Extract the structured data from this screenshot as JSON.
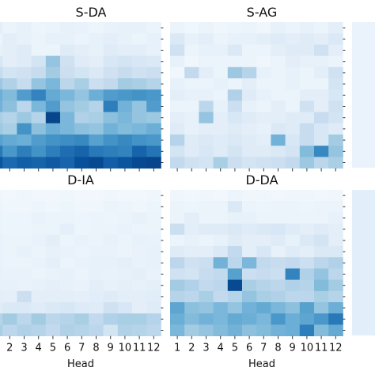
{
  "chart_data": [
    {
      "type": "heatmap",
      "title": "S-DA",
      "xlabel": "",
      "x_ticks": [
        "1",
        "2",
        "3",
        "4",
        "5",
        "6",
        "7",
        "8",
        "9",
        "10",
        "11",
        "12"
      ],
      "values": [
        [
          0.1,
          0.06,
          0.08,
          0.05,
          0.06,
          0.08,
          0.07,
          0.05,
          0.07,
          0.08,
          0.08,
          0.06
        ],
        [
          0.06,
          0.1,
          0.08,
          0.06,
          0.08,
          0.08,
          0.06,
          0.08,
          0.1,
          0.08,
          0.06,
          0.08
        ],
        [
          0.08,
          0.1,
          0.12,
          0.06,
          0.06,
          0.12,
          0.1,
          0.08,
          0.12,
          0.1,
          0.1,
          0.08
        ],
        [
          0.16,
          0.1,
          0.12,
          0.18,
          0.4,
          0.2,
          0.12,
          0.1,
          0.16,
          0.18,
          0.16,
          0.14
        ],
        [
          0.24,
          0.18,
          0.2,
          0.24,
          0.36,
          0.22,
          0.18,
          0.14,
          0.2,
          0.24,
          0.2,
          0.22
        ],
        [
          0.38,
          0.32,
          0.24,
          0.4,
          0.46,
          0.28,
          0.34,
          0.22,
          0.26,
          0.36,
          0.34,
          0.3
        ],
        [
          0.5,
          0.44,
          0.58,
          0.68,
          0.52,
          0.46,
          0.4,
          0.5,
          0.58,
          0.6,
          0.62,
          0.6
        ],
        [
          0.48,
          0.42,
          0.28,
          0.46,
          0.58,
          0.4,
          0.36,
          0.3,
          0.7,
          0.48,
          0.4,
          0.58
        ],
        [
          0.34,
          0.3,
          0.38,
          0.3,
          0.92,
          0.46,
          0.32,
          0.34,
          0.42,
          0.46,
          0.4,
          0.38
        ],
        [
          0.38,
          0.34,
          0.62,
          0.42,
          0.5,
          0.46,
          0.42,
          0.4,
          0.48,
          0.44,
          0.46,
          0.5
        ],
        [
          0.56,
          0.52,
          0.5,
          0.58,
          0.62,
          0.64,
          0.66,
          0.56,
          0.62,
          0.66,
          0.62,
          0.6
        ],
        [
          0.72,
          0.6,
          0.7,
          0.62,
          0.7,
          0.76,
          0.8,
          0.72,
          0.7,
          0.68,
          0.8,
          0.74
        ],
        [
          0.86,
          0.78,
          0.82,
          0.8,
          0.84,
          0.8,
          0.88,
          0.9,
          0.82,
          0.86,
          0.9,
          0.92
        ]
      ]
    },
    {
      "type": "heatmap",
      "title": "S-AG",
      "xlabel": "",
      "x_ticks": [
        "1",
        "2",
        "3",
        "4",
        "5",
        "6",
        "7",
        "8",
        "9",
        "10",
        "11",
        "12"
      ],
      "values": [
        [
          0.06,
          0.04,
          0.06,
          0.04,
          0.05,
          0.06,
          0.04,
          0.08,
          0.06,
          0.08,
          0.06,
          0.1
        ],
        [
          0.14,
          0.08,
          0.1,
          0.06,
          0.08,
          0.08,
          0.1,
          0.12,
          0.1,
          0.12,
          0.1,
          0.14
        ],
        [
          0.2,
          0.06,
          0.08,
          0.08,
          0.14,
          0.06,
          0.06,
          0.1,
          0.12,
          0.12,
          0.2,
          0.1
        ],
        [
          0.08,
          0.04,
          0.06,
          0.06,
          0.06,
          0.06,
          0.04,
          0.06,
          0.1,
          0.08,
          0.08,
          0.06
        ],
        [
          0.04,
          0.26,
          0.1,
          0.06,
          0.38,
          0.3,
          0.08,
          0.06,
          0.08,
          0.06,
          0.1,
          0.2
        ],
        [
          0.08,
          0.06,
          0.06,
          0.08,
          0.06,
          0.1,
          0.06,
          0.06,
          0.08,
          0.06,
          0.06,
          0.18
        ],
        [
          0.1,
          0.08,
          0.08,
          0.06,
          0.32,
          0.12,
          0.08,
          0.06,
          0.06,
          0.1,
          0.1,
          0.16
        ],
        [
          0.06,
          0.06,
          0.28,
          0.08,
          0.22,
          0.08,
          0.06,
          0.1,
          0.06,
          0.2,
          0.1,
          0.2
        ],
        [
          0.1,
          0.08,
          0.4,
          0.1,
          0.16,
          0.12,
          0.1,
          0.1,
          0.12,
          0.12,
          0.24,
          0.18
        ],
        [
          0.12,
          0.08,
          0.1,
          0.1,
          0.12,
          0.1,
          0.08,
          0.14,
          0.12,
          0.24,
          0.16,
          0.12
        ],
        [
          0.3,
          0.12,
          0.14,
          0.12,
          0.14,
          0.12,
          0.1,
          0.48,
          0.16,
          0.24,
          0.16,
          0.36
        ],
        [
          0.18,
          0.12,
          0.16,
          0.12,
          0.18,
          0.12,
          0.12,
          0.14,
          0.18,
          0.44,
          0.66,
          0.4
        ],
        [
          0.26,
          0.2,
          0.18,
          0.34,
          0.22,
          0.18,
          0.2,
          0.22,
          0.26,
          0.38,
          0.28,
          0.34
        ]
      ]
    },
    {
      "type": "heatmap",
      "title": "D-IA",
      "xlabel": "Head",
      "x_ticks": [
        "1",
        "2",
        "3",
        "4",
        "5",
        "6",
        "7",
        "8",
        "9",
        "10",
        "11",
        "12"
      ],
      "values": [
        [
          0.04,
          0.03,
          0.04,
          0.03,
          0.03,
          0.04,
          0.03,
          0.03,
          0.04,
          0.03,
          0.03,
          0.04
        ],
        [
          0.05,
          0.04,
          0.04,
          0.05,
          0.04,
          0.05,
          0.04,
          0.04,
          0.06,
          0.05,
          0.04,
          0.05
        ],
        [
          0.06,
          0.05,
          0.05,
          0.07,
          0.06,
          0.06,
          0.05,
          0.06,
          0.05,
          0.06,
          0.08,
          0.06
        ],
        [
          0.06,
          0.05,
          0.05,
          0.06,
          0.06,
          0.09,
          0.05,
          0.06,
          0.06,
          0.07,
          0.06,
          0.06
        ],
        [
          0.07,
          0.06,
          0.06,
          0.07,
          0.1,
          0.06,
          0.07,
          0.06,
          0.08,
          0.06,
          0.08,
          0.07
        ],
        [
          0.07,
          0.06,
          0.08,
          0.06,
          0.08,
          0.07,
          0.06,
          0.07,
          0.07,
          0.06,
          0.07,
          0.08
        ],
        [
          0.07,
          0.06,
          0.06,
          0.07,
          0.09,
          0.06,
          0.07,
          0.08,
          0.08,
          0.09,
          0.07,
          0.08
        ],
        [
          0.08,
          0.07,
          0.07,
          0.06,
          0.07,
          0.08,
          0.06,
          0.08,
          0.07,
          0.08,
          0.09,
          0.07
        ],
        [
          0.08,
          0.08,
          0.07,
          0.08,
          0.09,
          0.08,
          0.07,
          0.1,
          0.08,
          0.09,
          0.08,
          0.09
        ],
        [
          0.1,
          0.09,
          0.22,
          0.1,
          0.1,
          0.1,
          0.09,
          0.11,
          0.12,
          0.1,
          0.1,
          0.11
        ],
        [
          0.12,
          0.14,
          0.14,
          0.12,
          0.14,
          0.16,
          0.13,
          0.12,
          0.2,
          0.16,
          0.1,
          0.12
        ],
        [
          0.3,
          0.36,
          0.28,
          0.36,
          0.28,
          0.3,
          0.34,
          0.26,
          0.32,
          0.34,
          0.34,
          0.3
        ],
        [
          0.34,
          0.28,
          0.32,
          0.3,
          0.26,
          0.32,
          0.3,
          0.28,
          0.18,
          0.32,
          0.3,
          0.28
        ]
      ]
    },
    {
      "type": "heatmap",
      "title": "D-DA",
      "xlabel": "Head",
      "x_ticks": [
        "1",
        "2",
        "3",
        "4",
        "5",
        "6",
        "7",
        "8",
        "9",
        "10",
        "11",
        "12"
      ],
      "values": [
        [
          0.04,
          0.03,
          0.04,
          0.03,
          0.05,
          0.04,
          0.04,
          0.03,
          0.04,
          0.04,
          0.03,
          0.04
        ],
        [
          0.06,
          0.05,
          0.06,
          0.06,
          0.14,
          0.06,
          0.05,
          0.06,
          0.06,
          0.05,
          0.06,
          0.06
        ],
        [
          0.06,
          0.1,
          0.06,
          0.06,
          0.08,
          0.08,
          0.06,
          0.06,
          0.06,
          0.06,
          0.06,
          0.08
        ],
        [
          0.22,
          0.1,
          0.12,
          0.12,
          0.14,
          0.12,
          0.14,
          0.16,
          0.12,
          0.1,
          0.12,
          0.1
        ],
        [
          0.06,
          0.08,
          0.06,
          0.08,
          0.12,
          0.1,
          0.1,
          0.12,
          0.08,
          0.14,
          0.18,
          0.1
        ],
        [
          0.12,
          0.1,
          0.1,
          0.14,
          0.26,
          0.1,
          0.16,
          0.08,
          0.12,
          0.1,
          0.14,
          0.14
        ],
        [
          0.28,
          0.2,
          0.22,
          0.48,
          0.28,
          0.46,
          0.26,
          0.24,
          0.26,
          0.22,
          0.28,
          0.32
        ],
        [
          0.2,
          0.18,
          0.24,
          0.26,
          0.56,
          0.22,
          0.24,
          0.22,
          0.68,
          0.32,
          0.4,
          0.28
        ],
        [
          0.36,
          0.32,
          0.26,
          0.28,
          0.9,
          0.34,
          0.3,
          0.28,
          0.32,
          0.3,
          0.44,
          0.36
        ],
        [
          0.3,
          0.28,
          0.34,
          0.26,
          0.3,
          0.4,
          0.34,
          0.32,
          0.28,
          0.28,
          0.34,
          0.3
        ],
        [
          0.54,
          0.42,
          0.4,
          0.46,
          0.4,
          0.48,
          0.52,
          0.46,
          0.42,
          0.56,
          0.4,
          0.5
        ],
        [
          0.5,
          0.44,
          0.48,
          0.46,
          0.52,
          0.5,
          0.46,
          0.6,
          0.5,
          0.54,
          0.6,
          0.72
        ],
        [
          0.46,
          0.36,
          0.4,
          0.44,
          0.48,
          0.42,
          0.44,
          0.48,
          0.5,
          0.7,
          0.44,
          0.52
        ]
      ]
    }
  ]
}
